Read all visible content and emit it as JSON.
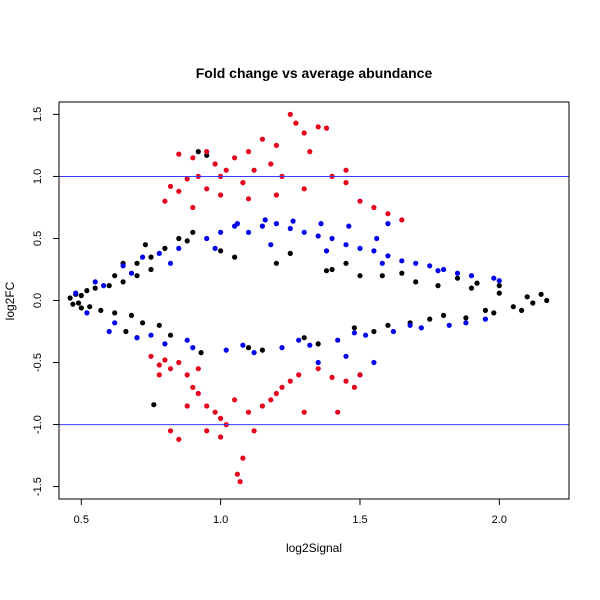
{
  "chart_data": {
    "type": "scatter",
    "title": "Fold change vs average abundance",
    "xlabel": "log2Signal",
    "ylabel": "log2FC",
    "xlim": [
      0.42,
      2.25
    ],
    "ylim": [
      -1.6,
      1.6
    ],
    "xticks": [
      0.5,
      1.0,
      1.5,
      2.0
    ],
    "xtick_labels": [
      "0.5",
      "1.0",
      "1.5",
      "2.0"
    ],
    "yticks": [
      -1.5,
      -1.0,
      -0.5,
      0.0,
      0.5,
      1.0,
      1.5
    ],
    "ytick_labels": [
      "-1.5",
      "-1.0",
      "-0.5",
      "0.0",
      "0.5",
      "1.0",
      "1.5"
    ],
    "hlines": [
      -1.0,
      1.0
    ],
    "hline_color": "#3b3bff",
    "grid": false,
    "legend": "none",
    "colors": {
      "black_points": "#000000",
      "blue_points": "#0000ee",
      "red_points": "#e8001c"
    },
    "series": [
      {
        "color": "#000000",
        "points": [
          [
            0.46,
            0.02
          ],
          [
            0.47,
            -0.03
          ],
          [
            0.48,
            0.05
          ],
          [
            0.49,
            -0.02
          ],
          [
            0.5,
            0.04
          ],
          [
            0.5,
            -0.06
          ],
          [
            0.52,
            0.08
          ],
          [
            0.53,
            -0.05
          ],
          [
            0.55,
            0.1
          ],
          [
            0.57,
            -0.08
          ],
          [
            0.6,
            0.12
          ],
          [
            0.62,
            -0.1
          ],
          [
            0.65,
            0.15
          ],
          [
            0.68,
            -0.12
          ],
          [
            0.7,
            0.2
          ],
          [
            0.72,
            -0.18
          ],
          [
            0.75,
            0.25
          ],
          [
            0.78,
            -0.2
          ],
          [
            0.7,
            0.3
          ],
          [
            0.75,
            0.35
          ],
          [
            0.65,
            0.3
          ],
          [
            0.62,
            0.2
          ],
          [
            0.66,
            -0.25
          ],
          [
            0.7,
            -0.3
          ],
          [
            0.73,
            0.45
          ],
          [
            0.8,
            0.42
          ],
          [
            0.85,
            0.5
          ],
          [
            0.82,
            -0.28
          ],
          [
            0.76,
            -0.84
          ],
          [
            0.92,
            1.2
          ],
          [
            0.95,
            1.17
          ],
          [
            0.9,
            0.55
          ],
          [
            0.88,
            0.48
          ],
          [
            0.93,
            -0.42
          ],
          [
            1.0,
            0.4
          ],
          [
            1.05,
            0.35
          ],
          [
            1.1,
            -0.38
          ],
          [
            1.2,
            0.3
          ],
          [
            1.3,
            -0.3
          ],
          [
            1.4,
            0.25
          ],
          [
            1.5,
            0.2
          ],
          [
            1.6,
            -0.2
          ],
          [
            1.7,
            0.15
          ],
          [
            1.8,
            -0.12
          ],
          [
            1.9,
            0.1
          ],
          [
            1.95,
            -0.08
          ],
          [
            2.0,
            0.06
          ],
          [
            2.05,
            -0.05
          ],
          [
            2.1,
            0.03
          ],
          [
            2.12,
            -0.02
          ],
          [
            2.15,
            0.05
          ],
          [
            2.17,
            0.0
          ],
          [
            1.85,
            0.18
          ],
          [
            1.75,
            -0.15
          ],
          [
            1.65,
            0.22
          ],
          [
            1.55,
            -0.25
          ],
          [
            1.45,
            0.3
          ],
          [
            1.35,
            -0.35
          ],
          [
            1.25,
            0.38
          ],
          [
            1.15,
            -0.4
          ],
          [
            2.0,
            0.12
          ],
          [
            2.08,
            -0.08
          ],
          [
            1.98,
            -0.1
          ],
          [
            1.92,
            0.14
          ],
          [
            1.88,
            -0.14
          ],
          [
            1.78,
            0.12
          ],
          [
            1.68,
            -0.18
          ],
          [
            1.58,
            0.2
          ],
          [
            1.48,
            -0.22
          ],
          [
            1.38,
            0.24
          ]
        ]
      },
      {
        "color": "#0000ee",
        "points": [
          [
            0.48,
            0.06
          ],
          [
            0.55,
            0.15
          ],
          [
            0.6,
            -0.25
          ],
          [
            0.65,
            0.28
          ],
          [
            0.7,
            -0.3
          ],
          [
            0.72,
            0.35
          ],
          [
            0.78,
            0.38
          ],
          [
            0.8,
            -0.35
          ],
          [
            0.85,
            0.42
          ],
          [
            0.9,
            -0.38
          ],
          [
            0.95,
            0.5
          ],
          [
            1.0,
            0.55
          ],
          [
            1.02,
            -0.4
          ],
          [
            1.05,
            0.6
          ],
          [
            1.1,
            0.55
          ],
          [
            1.12,
            -0.42
          ],
          [
            1.15,
            0.6
          ],
          [
            1.2,
            0.62
          ],
          [
            1.22,
            -0.38
          ],
          [
            1.25,
            0.58
          ],
          [
            1.3,
            0.55
          ],
          [
            1.32,
            -0.36
          ],
          [
            1.35,
            0.52
          ],
          [
            1.4,
            0.5
          ],
          [
            1.42,
            -0.32
          ],
          [
            1.45,
            0.45
          ],
          [
            1.5,
            0.42
          ],
          [
            1.52,
            -0.28
          ],
          [
            1.55,
            0.4
          ],
          [
            1.6,
            0.36
          ],
          [
            1.62,
            -0.25
          ],
          [
            1.65,
            0.32
          ],
          [
            1.7,
            0.3
          ],
          [
            1.72,
            -0.22
          ],
          [
            1.75,
            0.28
          ],
          [
            1.8,
            0.25
          ],
          [
            1.82,
            -0.2
          ],
          [
            1.85,
            0.22
          ],
          [
            1.9,
            0.2
          ],
          [
            1.95,
            -0.15
          ],
          [
            2.0,
            0.16
          ],
          [
            1.98,
            0.18
          ],
          [
            1.88,
            -0.18
          ],
          [
            1.78,
            0.24
          ],
          [
            1.68,
            -0.2
          ],
          [
            1.58,
            0.3
          ],
          [
            1.48,
            -0.26
          ],
          [
            1.38,
            0.4
          ],
          [
            1.28,
            -0.32
          ],
          [
            1.18,
            0.45
          ],
          [
            1.08,
            -0.36
          ],
          [
            0.98,
            0.42
          ],
          [
            0.88,
            -0.32
          ],
          [
            0.82,
            0.3
          ],
          [
            0.75,
            -0.28
          ],
          [
            0.68,
            0.22
          ],
          [
            0.62,
            -0.18
          ],
          [
            0.58,
            0.12
          ],
          [
            0.52,
            -0.1
          ],
          [
            1.6,
            0.62
          ],
          [
            1.56,
            0.5
          ],
          [
            1.46,
            0.6
          ],
          [
            1.36,
            0.62
          ],
          [
            1.26,
            0.64
          ],
          [
            1.16,
            0.65
          ],
          [
            1.06,
            0.62
          ],
          [
            1.45,
            -0.45
          ],
          [
            1.5,
            -0.6
          ],
          [
            1.55,
            -0.5
          ],
          [
            1.35,
            -0.5
          ]
        ]
      },
      {
        "color": "#e8001c",
        "points": [
          [
            0.8,
            0.8
          ],
          [
            0.82,
            0.92
          ],
          [
            0.85,
            0.88
          ],
          [
            0.88,
            0.98
          ],
          [
            0.9,
            0.75
          ],
          [
            0.92,
            1.0
          ],
          [
            0.95,
            0.9
          ],
          [
            0.98,
            1.1
          ],
          [
            1.0,
            0.85
          ],
          [
            1.02,
            1.05
          ],
          [
            1.05,
            1.15
          ],
          [
            1.08,
            0.95
          ],
          [
            1.1,
            1.2
          ],
          [
            1.12,
            1.05
          ],
          [
            1.15,
            1.3
          ],
          [
            1.18,
            1.1
          ],
          [
            1.2,
            1.25
          ],
          [
            1.22,
            1.0
          ],
          [
            1.25,
            1.5
          ],
          [
            1.27,
            1.43
          ],
          [
            1.3,
            1.35
          ],
          [
            1.32,
            1.2
          ],
          [
            1.35,
            1.4
          ],
          [
            1.38,
            1.39
          ],
          [
            1.4,
            1.0
          ],
          [
            1.45,
            0.95
          ],
          [
            1.5,
            0.8
          ],
          [
            1.55,
            0.75
          ],
          [
            1.6,
            0.7
          ],
          [
            1.65,
            0.65
          ],
          [
            1.45,
            1.05
          ],
          [
            1.3,
            0.9
          ],
          [
            1.2,
            0.85
          ],
          [
            1.1,
            0.82
          ],
          [
            1.0,
            1.0
          ],
          [
            0.95,
            1.2
          ],
          [
            0.9,
            1.15
          ],
          [
            0.85,
            1.18
          ],
          [
            0.75,
            -0.45
          ],
          [
            0.78,
            -0.52
          ],
          [
            0.8,
            -0.48
          ],
          [
            0.82,
            -0.55
          ],
          [
            0.85,
            -0.5
          ],
          [
            0.88,
            -0.6
          ],
          [
            0.9,
            -0.7
          ],
          [
            0.92,
            -0.75
          ],
          [
            0.95,
            -0.85
          ],
          [
            0.98,
            -0.9
          ],
          [
            1.0,
            -0.95
          ],
          [
            1.02,
            -1.0
          ],
          [
            1.05,
            -0.8
          ],
          [
            1.08,
            -1.27
          ],
          [
            1.1,
            -0.9
          ],
          [
            1.12,
            -1.05
          ],
          [
            1.15,
            -0.85
          ],
          [
            1.18,
            -0.8
          ],
          [
            1.2,
            -0.75
          ],
          [
            1.22,
            -0.7
          ],
          [
            1.25,
            -0.65
          ],
          [
            1.28,
            -0.6
          ],
          [
            1.3,
            -0.9
          ],
          [
            1.35,
            -0.55
          ],
          [
            1.4,
            -0.62
          ],
          [
            1.42,
            -0.9
          ],
          [
            1.45,
            -0.65
          ],
          [
            1.48,
            -0.7
          ],
          [
            1.5,
            -0.6
          ],
          [
            1.07,
            -1.46
          ],
          [
            1.06,
            -1.4
          ],
          [
            0.82,
            -1.05
          ],
          [
            0.85,
            -1.12
          ],
          [
            0.95,
            -1.05
          ],
          [
            1.0,
            -1.1
          ],
          [
            0.78,
            -0.6
          ],
          [
            0.88,
            -0.85
          ],
          [
            0.92,
            -0.55
          ]
        ]
      }
    ]
  }
}
